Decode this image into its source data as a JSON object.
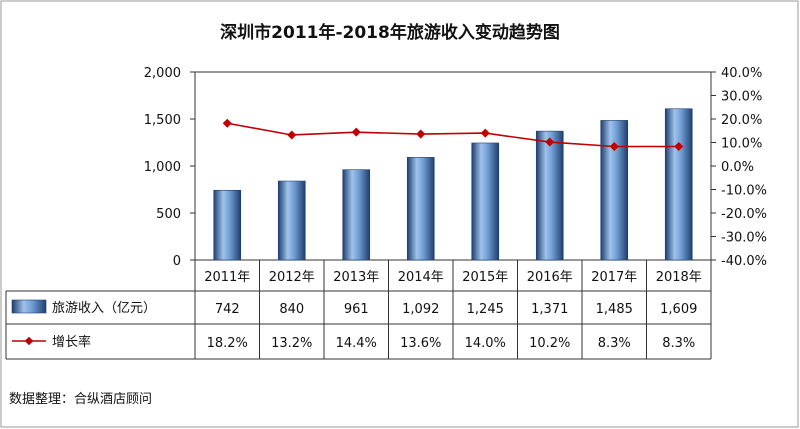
{
  "chart_data": {
    "type": "bar",
    "title": "深圳市2011年-2018年旅游收入变动趋势图",
    "categories": [
      "2011年",
      "2012年",
      "2013年",
      "2014年",
      "2015年",
      "2016年",
      "2017年",
      "2018年"
    ],
    "series": [
      {
        "name": "旅游收入（亿元）",
        "type": "bar",
        "axis": "left",
        "values": [
          742,
          840,
          961,
          1092,
          1245,
          1371,
          1485,
          1609
        ],
        "labels": [
          "742",
          "840",
          "961",
          "1,092",
          "1,245",
          "1,371",
          "1,485",
          "1,609"
        ],
        "color": "#4f81bd"
      },
      {
        "name": "增长率",
        "type": "line",
        "axis": "right",
        "values": [
          18.2,
          13.2,
          14.4,
          13.6,
          14.0,
          10.2,
          8.3,
          8.3
        ],
        "labels": [
          "18.2%",
          "13.2%",
          "14.4%",
          "13.6%",
          "14.0%",
          "10.2%",
          "8.3%",
          "8.3%"
        ],
        "color": "#c00000"
      }
    ],
    "y_left": {
      "ylim": [
        0,
        2000
      ],
      "ticks": [
        0,
        500,
        1000,
        1500,
        2000
      ],
      "tick_labels": [
        "0",
        "500",
        "1,000",
        "1,500",
        "2,000"
      ]
    },
    "y_right": {
      "ylim": [
        -40,
        40
      ],
      "ticks": [
        40,
        30,
        20,
        10,
        0,
        -10,
        -20,
        -30,
        -40
      ],
      "tick_labels": [
        "40.0%",
        "30.0%",
        "20.0%",
        "10.0%",
        "0.0%",
        "-10.0%",
        "-20.0%",
        "-30.0%",
        "-40.0%"
      ]
    },
    "grid": false,
    "legend": "data-table"
  },
  "source": "数据整理：合纵酒店顾问"
}
